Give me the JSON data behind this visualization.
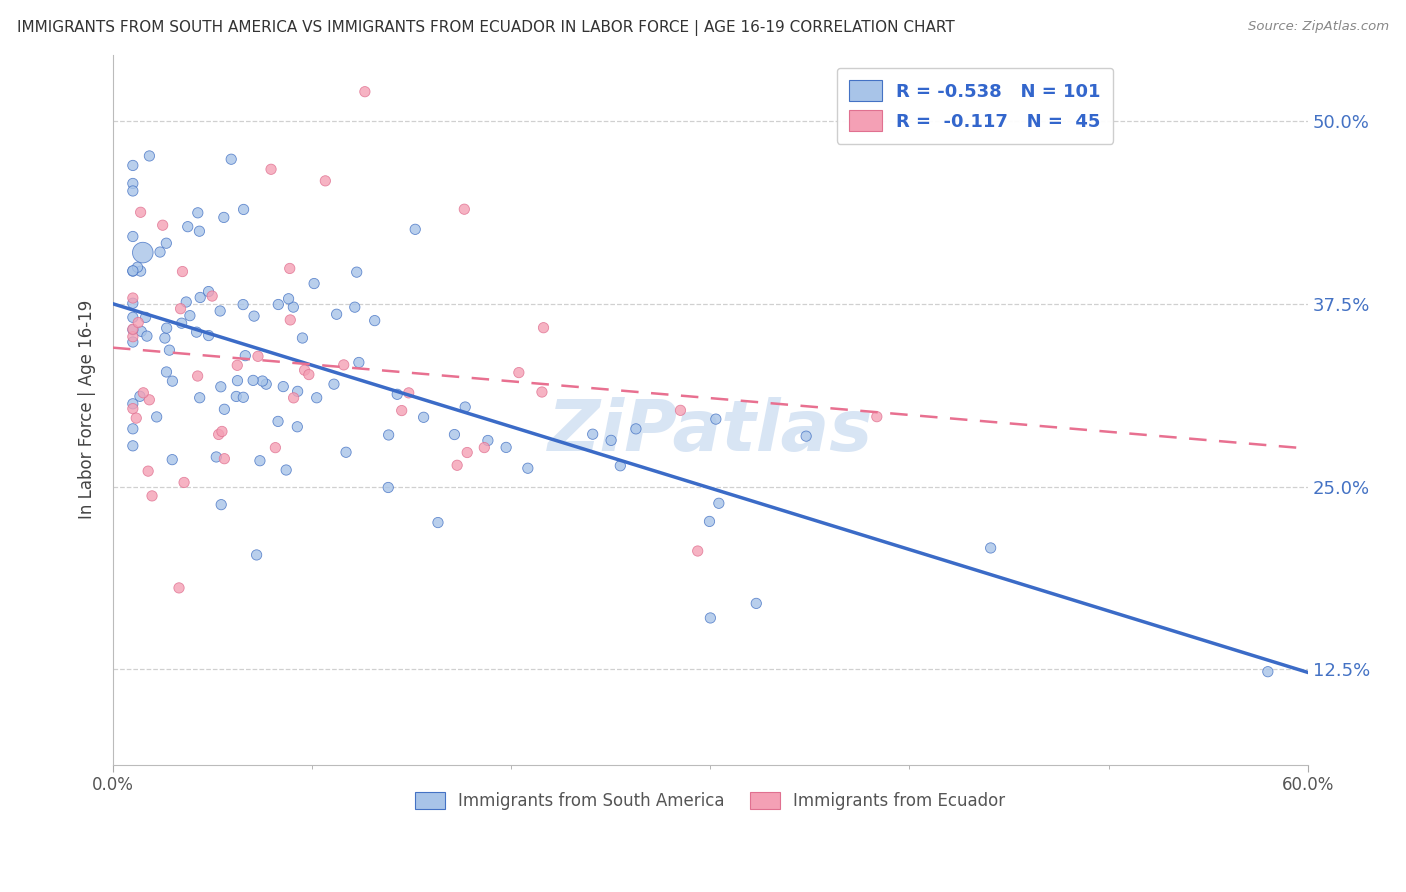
{
  "title": "IMMIGRANTS FROM SOUTH AMERICA VS IMMIGRANTS FROM ECUADOR IN LABOR FORCE | AGE 16-19 CORRELATION CHART",
  "source": "Source: ZipAtlas.com",
  "ylabel": "In Labor Force | Age 16-19",
  "ytick_labels": [
    "12.5%",
    "25.0%",
    "37.5%",
    "50.0%"
  ],
  "ytick_values": [
    0.125,
    0.25,
    0.375,
    0.5
  ],
  "xmin": 0.0,
  "xmax": 0.6,
  "ymin": 0.06,
  "ymax": 0.545,
  "blue_color": "#a8c4e8",
  "blue_edge": "#4472c4",
  "pink_color": "#f4a0b5",
  "pink_edge": "#e07090",
  "blue_line_color": "#3b6bc7",
  "pink_line_color": "#e87090",
  "watermark": "ZiPatlas",
  "watermark_color": "#c8daf0",
  "background_color": "#ffffff",
  "grid_color": "#d0d0d0",
  "title_color": "#333333",
  "source_color": "#888888",
  "ytick_color": "#4472c4",
  "legend_text_color": "#3366cc",
  "bottom_legend_color": "#555555"
}
